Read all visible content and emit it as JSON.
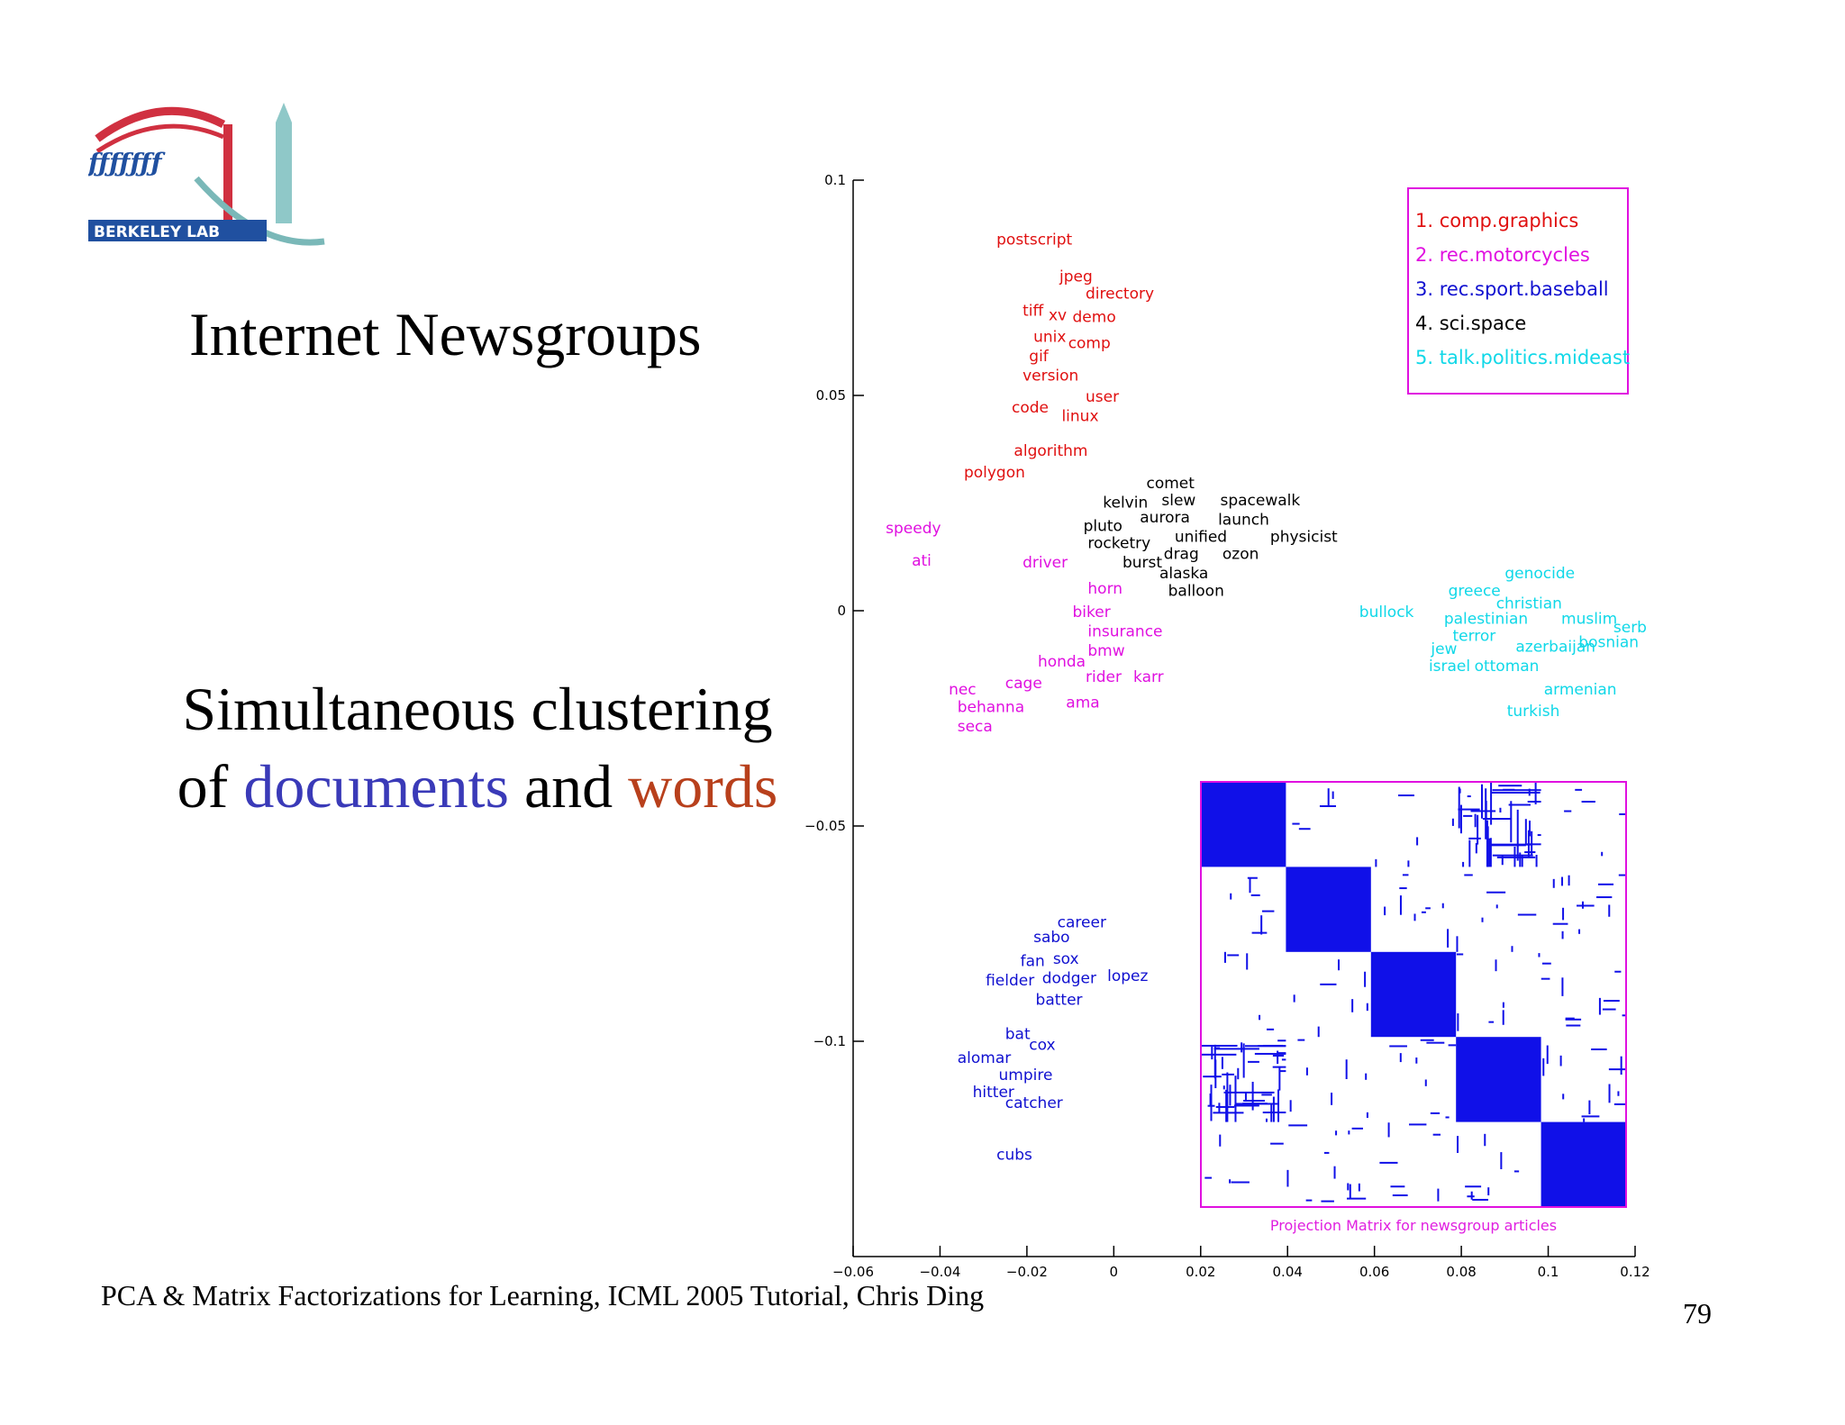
{
  "slide": {
    "title": "Internet Newsgroups",
    "subtitle_line1": "Simultaneous clustering",
    "subtitle_of": "of",
    "subtitle_docs": "documents",
    "subtitle_and": "and",
    "subtitle_words": "words",
    "footer": "PCA & Matrix Factorizations for Learning, ICML 2005 Tutorial, Chris Ding",
    "page_number": "79",
    "logo_text": "BERKELEY LAB",
    "colors": {
      "documents": "#3a3ab8",
      "words": "#b8401c"
    }
  },
  "chart_data": {
    "type": "scatter",
    "title": "",
    "xlabel": "",
    "ylabel": "",
    "xlim": [
      -0.06,
      0.12
    ],
    "ylim": [
      -0.15,
      0.1
    ],
    "x_ticks": [
      -0.06,
      -0.04,
      -0.02,
      0,
      0.02,
      0.04,
      0.06,
      0.08,
      0.1,
      0.12
    ],
    "x_tick_labels": [
      "−0.06",
      "−0.04",
      "−0.02",
      "0",
      "0.02",
      "0.04",
      "0.06",
      "0.08",
      "0.1",
      "0.12"
    ],
    "y_ticks": [
      0.1,
      0.05,
      0,
      -0.05,
      -0.1
    ],
    "y_tick_labels": [
      "0.1",
      "0.05",
      "0",
      "−0.05",
      "−0.1"
    ],
    "grid": false,
    "legend_position": "top-right",
    "legend": [
      {
        "label": "1. comp.graphics",
        "color": "#e01010"
      },
      {
        "label": "2. rec.motorcycles",
        "color": "#e010e0"
      },
      {
        "label": "3. rec.sport.baseball",
        "color": "#1010d0"
      },
      {
        "label": "4. sci.space",
        "color": "#000000"
      },
      {
        "label": "5. talk.politics.mideast",
        "color": "#10d8e8"
      }
    ],
    "series": [
      {
        "color": "#e01010",
        "words": [
          {
            "text": "postscript",
            "x": -0.027,
            "y": 0.085
          },
          {
            "text": "jpeg",
            "x": -0.0125,
            "y": 0.0765
          },
          {
            "text": "directory",
            "x": -0.0065,
            "y": 0.0725
          },
          {
            "text": "tiff",
            "x": -0.021,
            "y": 0.0685
          },
          {
            "text": "xv",
            "x": -0.015,
            "y": 0.0675
          },
          {
            "text": "demo",
            "x": -0.0095,
            "y": 0.067
          },
          {
            "text": "unix",
            "x": -0.0185,
            "y": 0.0625
          },
          {
            "text": "comp",
            "x": -0.0105,
            "y": 0.061
          },
          {
            "text": "gif",
            "x": -0.0195,
            "y": 0.058
          },
          {
            "text": "version",
            "x": -0.021,
            "y": 0.0535
          },
          {
            "text": "user",
            "x": -0.0065,
            "y": 0.0485
          },
          {
            "text": "code",
            "x": -0.0235,
            "y": 0.046
          },
          {
            "text": "linux",
            "x": -0.012,
            "y": 0.044
          },
          {
            "text": "algorithm",
            "x": -0.023,
            "y": 0.036
          },
          {
            "text": "polygon",
            "x": -0.0345,
            "y": 0.031
          }
        ]
      },
      {
        "color": "#e010e0",
        "words": [
          {
            "text": "speedy",
            "x": -0.0525,
            "y": 0.018
          },
          {
            "text": "ati",
            "x": -0.0465,
            "y": 0.0105
          },
          {
            "text": "driver",
            "x": -0.021,
            "y": 0.01
          },
          {
            "text": "horn",
            "x": -0.006,
            "y": 0.004
          },
          {
            "text": "biker",
            "x": -0.0095,
            "y": -0.0015
          },
          {
            "text": "insurance",
            "x": -0.006,
            "y": -0.006
          },
          {
            "text": "bmw",
            "x": -0.006,
            "y": -0.0105
          },
          {
            "text": "honda",
            "x": -0.0175,
            "y": -0.013
          },
          {
            "text": "rider",
            "x": -0.0065,
            "y": -0.0165
          },
          {
            "text": "karr",
            "x": 0.0045,
            "y": -0.0165
          },
          {
            "text": "cage",
            "x": -0.025,
            "y": -0.018
          },
          {
            "text": "nec",
            "x": -0.038,
            "y": -0.0195
          },
          {
            "text": "behanna",
            "x": -0.036,
            "y": -0.0235
          },
          {
            "text": "ama",
            "x": -0.011,
            "y": -0.0225
          },
          {
            "text": "seca",
            "x": -0.036,
            "y": -0.028
          }
        ]
      },
      {
        "color": "#1010d0",
        "words": [
          {
            "text": "career",
            "x": -0.013,
            "y": -0.0735
          },
          {
            "text": "sabo",
            "x": -0.0185,
            "y": -0.077
          },
          {
            "text": "fan",
            "x": -0.0215,
            "y": -0.0825
          },
          {
            "text": "sox",
            "x": -0.014,
            "y": -0.082
          },
          {
            "text": "fielder",
            "x": -0.0295,
            "y": -0.087
          },
          {
            "text": "dodger",
            "x": -0.0165,
            "y": -0.0865
          },
          {
            "text": "lopez",
            "x": -0.0015,
            "y": -0.086
          },
          {
            "text": "batter",
            "x": -0.018,
            "y": -0.0915
          },
          {
            "text": "bat",
            "x": -0.025,
            "y": -0.0995
          },
          {
            "text": "cox",
            "x": -0.0195,
            "y": -0.102
          },
          {
            "text": "alomar",
            "x": -0.036,
            "y": -0.105
          },
          {
            "text": "umpire",
            "x": -0.0265,
            "y": -0.109
          },
          {
            "text": "hitter",
            "x": -0.0325,
            "y": -0.113
          },
          {
            "text": "catcher",
            "x": -0.025,
            "y": -0.1155
          },
          {
            "text": "cubs",
            "x": -0.027,
            "y": -0.1275
          }
        ]
      },
      {
        "color": "#000000",
        "words": [
          {
            "text": "comet",
            "x": 0.0075,
            "y": 0.0285
          },
          {
            "text": "kelvin",
            "x": -0.0025,
            "y": 0.024
          },
          {
            "text": "slew",
            "x": 0.011,
            "y": 0.0245
          },
          {
            "text": "spacewalk",
            "x": 0.0245,
            "y": 0.0245
          },
          {
            "text": "aurora",
            "x": 0.006,
            "y": 0.0205
          },
          {
            "text": "launch",
            "x": 0.024,
            "y": 0.02
          },
          {
            "text": "pluto",
            "x": -0.007,
            "y": 0.0185
          },
          {
            "text": "unified",
            "x": 0.014,
            "y": 0.016
          },
          {
            "text": "physicist",
            "x": 0.036,
            "y": 0.016
          },
          {
            "text": "rocketry",
            "x": -0.006,
            "y": 0.0145
          },
          {
            "text": "drag",
            "x": 0.0115,
            "y": 0.012
          },
          {
            "text": "ozon",
            "x": 0.025,
            "y": 0.012
          },
          {
            "text": "burst",
            "x": 0.002,
            "y": 0.01
          },
          {
            "text": "alaska",
            "x": 0.0105,
            "y": 0.0075
          },
          {
            "text": "balloon",
            "x": 0.0125,
            "y": 0.0035
          }
        ]
      },
      {
        "color": "#10d8e8",
        "words": [
          {
            "text": "genocide",
            "x": 0.09,
            "y": 0.0075
          },
          {
            "text": "greece",
            "x": 0.077,
            "y": 0.0035
          },
          {
            "text": "christian",
            "x": 0.088,
            "y": 0.0005
          },
          {
            "text": "bullock",
            "x": 0.0565,
            "y": -0.0015
          },
          {
            "text": "palestinian",
            "x": 0.076,
            "y": -0.003
          },
          {
            "text": "muslim",
            "x": 0.103,
            "y": -0.003
          },
          {
            "text": "serb",
            "x": 0.115,
            "y": -0.005
          },
          {
            "text": "terror",
            "x": 0.078,
            "y": -0.007
          },
          {
            "text": "jew",
            "x": 0.073,
            "y": -0.01
          },
          {
            "text": "azerbaijan",
            "x": 0.0925,
            "y": -0.0095
          },
          {
            "text": "bosnian",
            "x": 0.107,
            "y": -0.0085
          },
          {
            "text": "israel",
            "x": 0.0725,
            "y": -0.014
          },
          {
            "text": "ottoman",
            "x": 0.083,
            "y": -0.014
          },
          {
            "text": "armenian",
            "x": 0.099,
            "y": -0.0195
          },
          {
            "text": "turkish",
            "x": 0.0905,
            "y": -0.0245
          }
        ]
      }
    ],
    "inset": {
      "caption": "Projection Matrix for newsgroup articles",
      "blocks": 5,
      "border_color": "#e010e0",
      "fill_color": "#1010e8"
    }
  }
}
